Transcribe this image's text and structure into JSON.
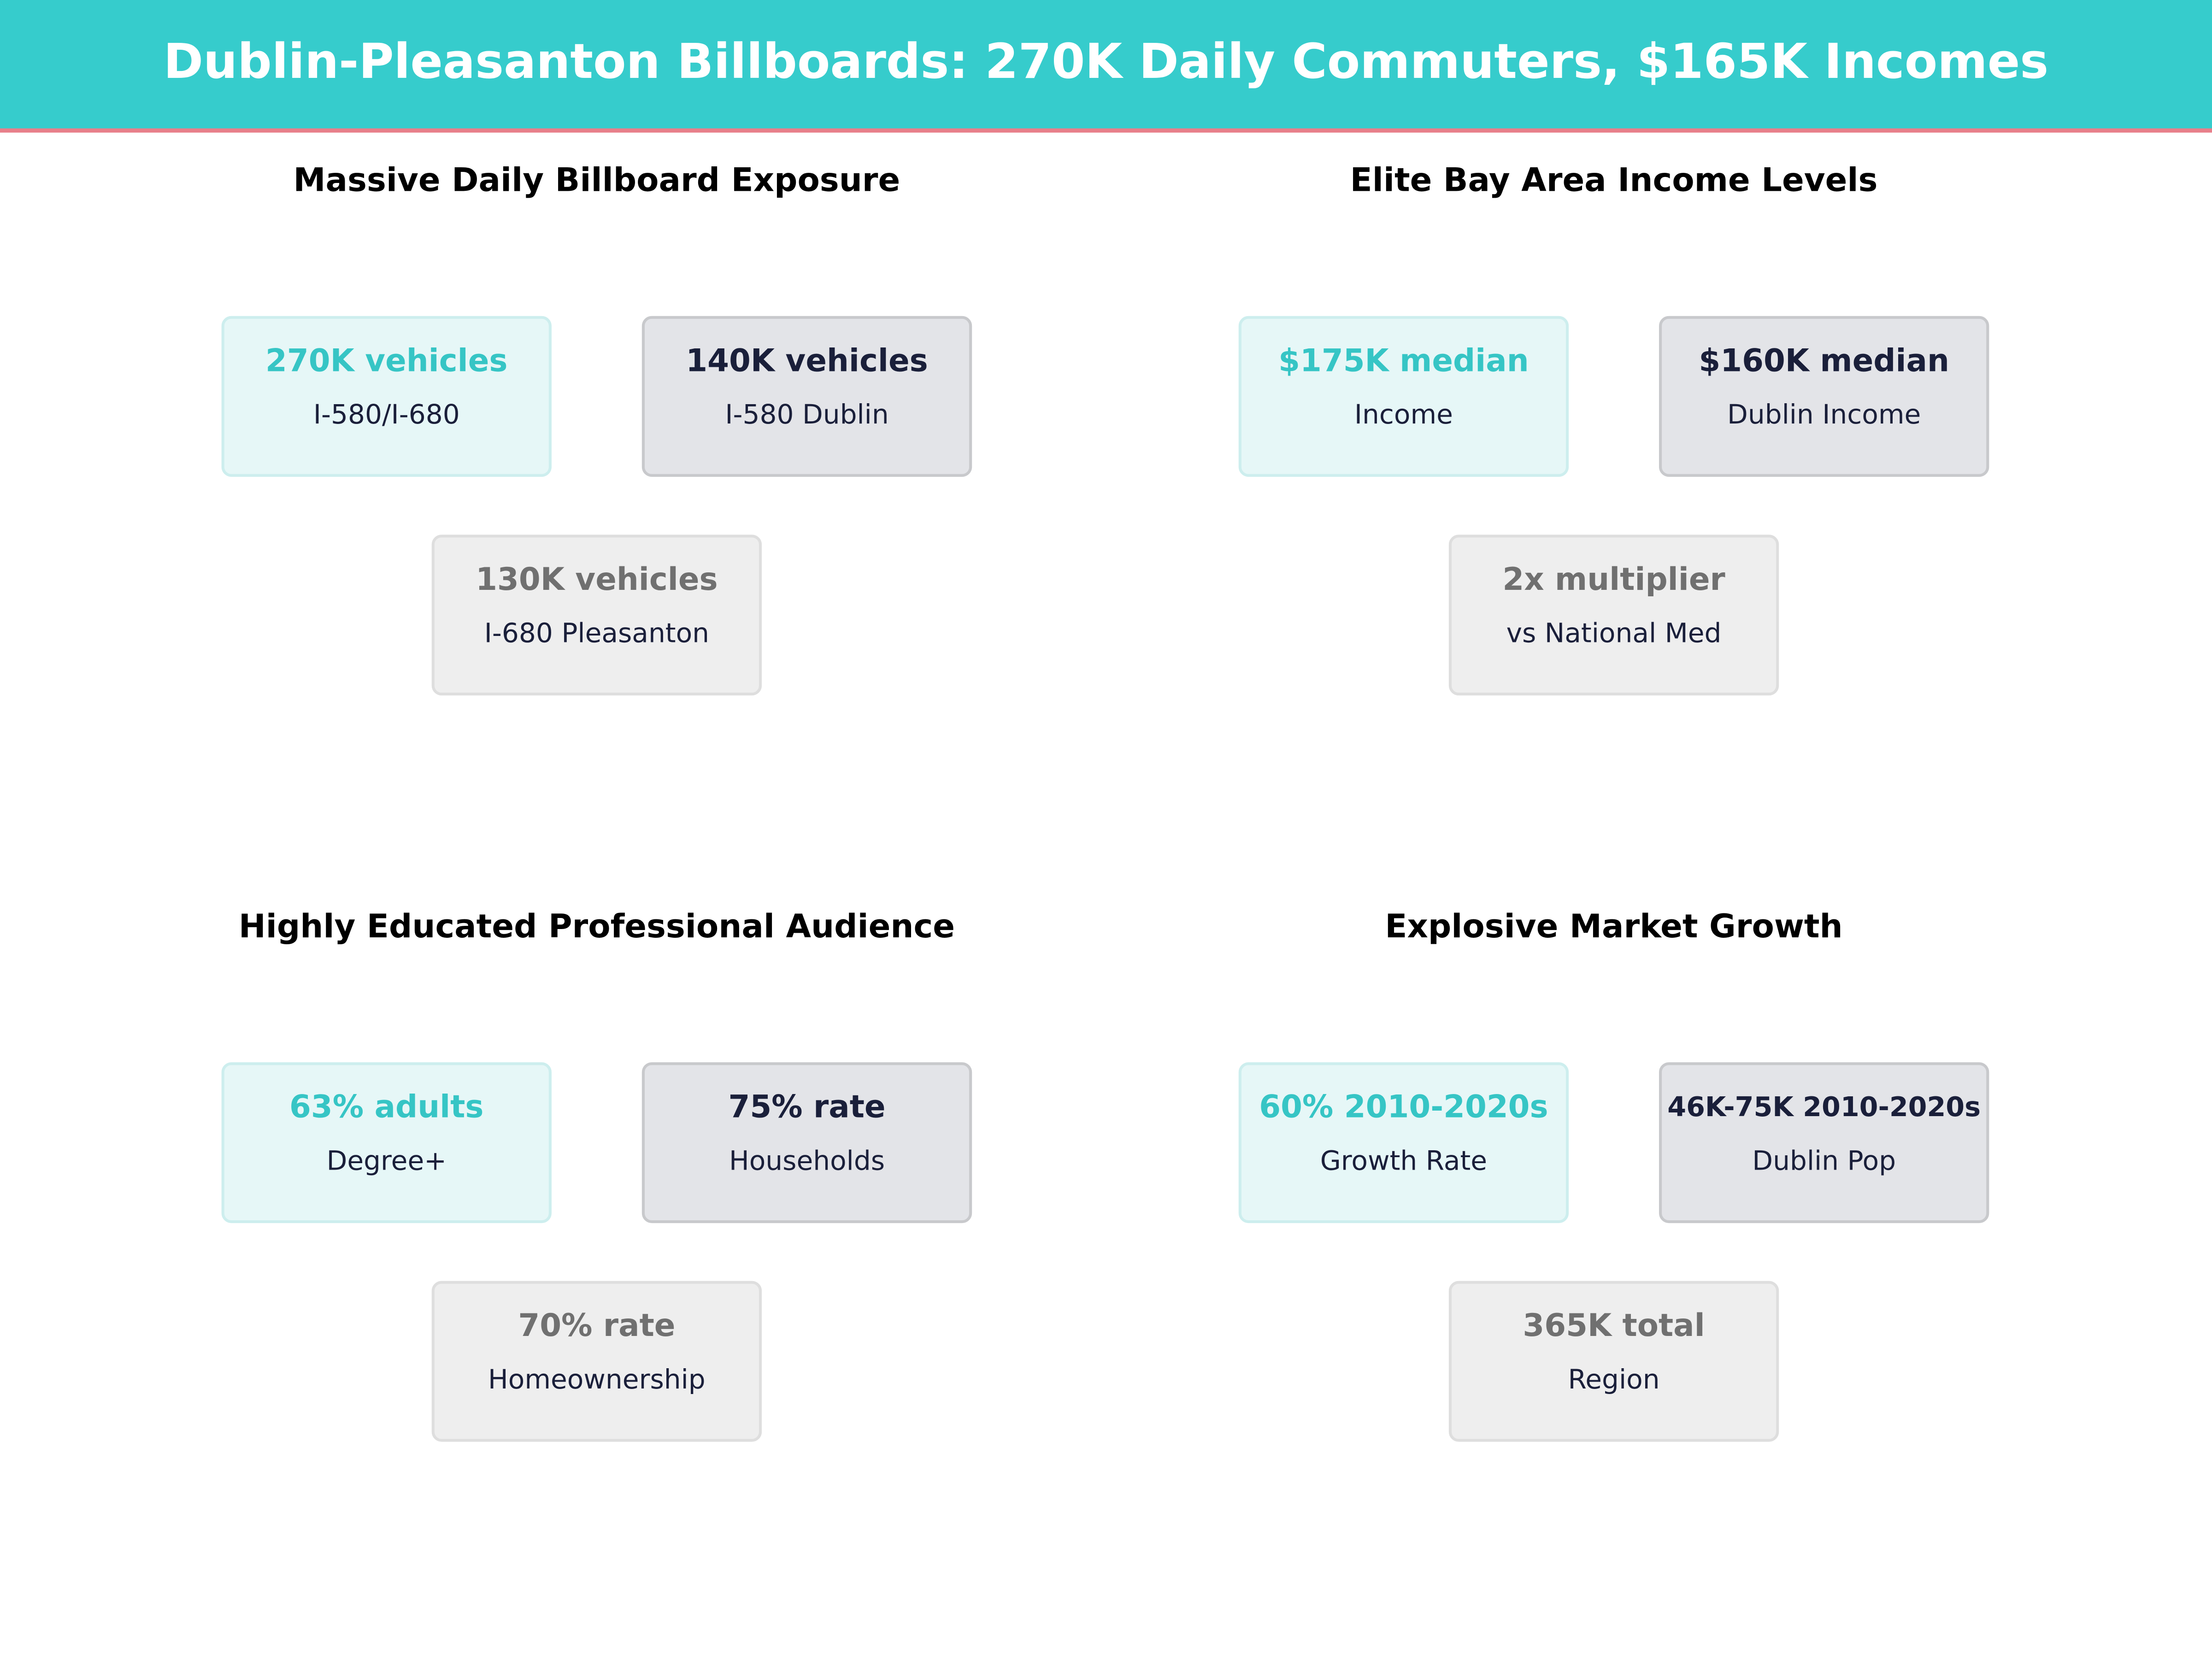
{
  "header": {
    "title": "Dublin-Pleasanton Billboards: 270K Daily Commuters, $165K Incomes"
  },
  "panels": [
    {
      "title": "Massive Daily Billboard Exposure",
      "cards": [
        {
          "value": "270K vehicles",
          "label": "I-580/I-680"
        },
        {
          "value": "140K vehicles",
          "label": "I-580 Dublin"
        },
        {
          "value": "130K vehicles",
          "label": "I-680 Pleasanton"
        }
      ]
    },
    {
      "title": "Elite Bay Area Income Levels",
      "cards": [
        {
          "value": "$175K median",
          "label": "Income"
        },
        {
          "value": "$160K median",
          "label": "Dublin Income"
        },
        {
          "value": "2x multiplier",
          "label": "vs National Med"
        }
      ]
    },
    {
      "title": "Highly Educated Professional Audience",
      "cards": [
        {
          "value": "63% adults",
          "label": "Degree+"
        },
        {
          "value": "75% rate",
          "label": "Households"
        },
        {
          "value": "70% rate",
          "label": "Homeownership"
        }
      ]
    },
    {
      "title": "Explosive Market Growth",
      "cards": [
        {
          "value": "60% 2010-2020s",
          "label": "Growth Rate"
        },
        {
          "value": "46K-75K 2010-2020s",
          "label": "Dublin Pop"
        },
        {
          "value": "365K total",
          "label": "Region"
        }
      ]
    }
  ]
}
